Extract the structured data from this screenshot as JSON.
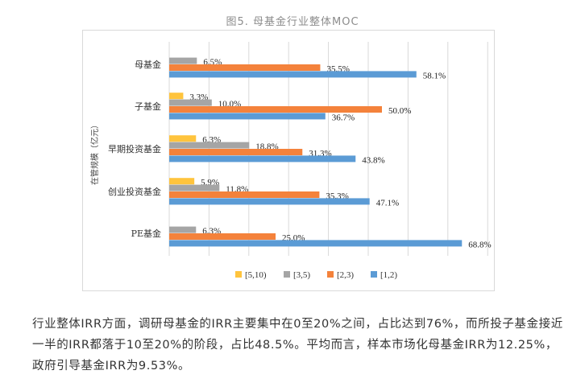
{
  "chart_data": {
    "type": "bar",
    "orientation": "horizontal",
    "title": "图5. 母基金行业整体MOC",
    "ylabel": "在管规模（亿元）",
    "xlabel": "",
    "xlim": [
      0,
      75
    ],
    "grid": true,
    "legend_position": "bottom",
    "categories": [
      "母基金",
      "子基金",
      "早期投资基金",
      "创业投资基金",
      "PE基金"
    ],
    "series": [
      {
        "name": "[5,10)",
        "color": "#FFC43D",
        "values": [
          null,
          3.3,
          6.3,
          5.9,
          null
        ]
      },
      {
        "name": "[3,5)",
        "color": "#A5A5A5",
        "values": [
          6.5,
          10.0,
          18.8,
          11.8,
          6.3
        ]
      },
      {
        "name": "[2,3)",
        "color": "#F4823B",
        "values": [
          35.5,
          50.0,
          31.3,
          35.3,
          25.0
        ]
      },
      {
        "name": "[1,2)",
        "color": "#5B9BD5",
        "values": [
          58.1,
          36.7,
          43.8,
          47.1,
          68.8
        ]
      }
    ]
  },
  "paragraph": "行业整体IRR方面，调研母基金的IRR主要集中在0至20%之间，占比达到76%，而所投子基金接近一半的IRR都落于10至20%的阶段，占比48.5%。平均而言，样本市场化母基金IRR为12.25%，政府引导基金IRR为9.53%。"
}
